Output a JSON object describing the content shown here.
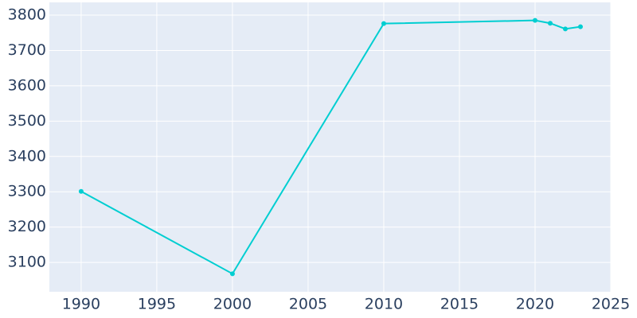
{
  "chart_data": {
    "type": "line",
    "x": [
      1990,
      2000,
      2010,
      2020,
      2021,
      2022,
      2023
    ],
    "series": [
      {
        "color": "#00ced1",
        "values": [
          3301,
          3068,
          3776,
          3785,
          3777,
          3761,
          3767
        ]
      }
    ],
    "xlim": [
      1987.9,
      2025
    ],
    "xticks": [
      1990,
      1995,
      2000,
      2005,
      2010,
      2015,
      2020,
      2025
    ],
    "ylim": [
      3017,
      3836
    ],
    "yticks": [
      3100,
      3200,
      3300,
      3400,
      3500,
      3600,
      3700,
      3800
    ],
    "grid": true,
    "background": "#e5ecf6"
  }
}
